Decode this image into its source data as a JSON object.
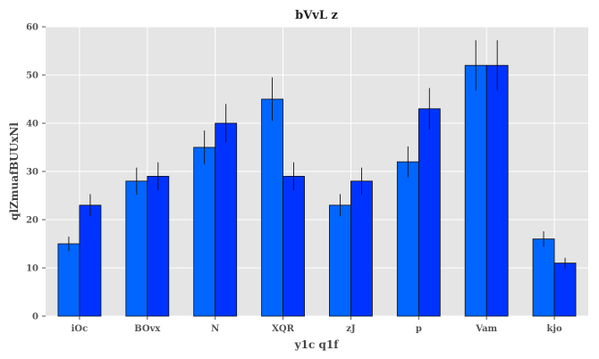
{
  "chart_data": {
    "type": "bar",
    "title": "bVvL z",
    "xlabel": "y1c q1f",
    "ylabel": "qlZmuafBUUxNl",
    "categories": [
      "iOc",
      "BOvx",
      "N",
      "XQR",
      "zJ",
      "p",
      "Vam",
      "kjo"
    ],
    "ylim": [
      0,
      60
    ],
    "yticks": [
      0,
      10,
      20,
      30,
      40,
      50,
      60
    ],
    "grid": true,
    "series": [
      {
        "values": [
          15,
          28,
          35,
          45,
          23,
          32,
          52,
          16
        ],
        "errors": [
          1.5,
          2.8,
          3.5,
          4.5,
          2.3,
          3.2,
          5.2,
          1.6
        ],
        "color": "#0066ff"
      },
      {
        "values": [
          23,
          29,
          40,
          29,
          28,
          43,
          52,
          11
        ],
        "errors": [
          2.3,
          2.9,
          4.0,
          2.9,
          2.8,
          4.3,
          5.2,
          1.1
        ],
        "color": "#0033ff"
      }
    ],
    "background": "#e5e5e5"
  }
}
